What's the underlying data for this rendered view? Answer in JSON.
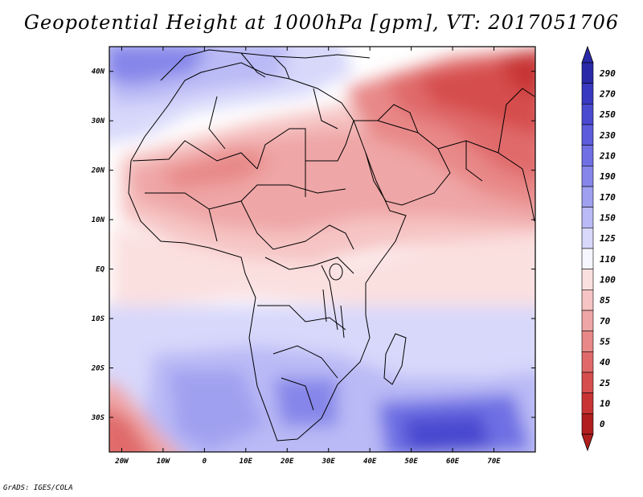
{
  "title": "Geopotential Height at 1000hPa [gpm], VT: 2017051706",
  "credit": "GrADS: IGES/COLA",
  "map": {
    "region": "Africa, Arabia and western Indian Ocean",
    "field": "geopotential height at 1000 hPa",
    "units": "gpm",
    "valid_time": "2017051706",
    "lon_range": [
      -23,
      80
    ],
    "lat_range": [
      -37,
      45
    ],
    "lat_ticks": [
      {
        "value": 40,
        "label": "40N"
      },
      {
        "value": 30,
        "label": "30N"
      },
      {
        "value": 20,
        "label": "20N"
      },
      {
        "value": 10,
        "label": "10N"
      },
      {
        "value": 0,
        "label": "EQ"
      },
      {
        "value": -10,
        "label": "10S"
      },
      {
        "value": -20,
        "label": "20S"
      },
      {
        "value": -30,
        "label": "30S"
      }
    ],
    "lon_ticks": [
      {
        "value": -20,
        "label": "20W"
      },
      {
        "value": -10,
        "label": "10W"
      },
      {
        "value": 0,
        "label": "0"
      },
      {
        "value": 10,
        "label": "10E"
      },
      {
        "value": 20,
        "label": "20E"
      },
      {
        "value": 30,
        "label": "30E"
      },
      {
        "value": 40,
        "label": "40E"
      },
      {
        "value": 50,
        "label": "50E"
      },
      {
        "value": 60,
        "label": "60E"
      },
      {
        "value": 70,
        "label": "70E"
      }
    ]
  },
  "colorbar": {
    "levels": [
      "290",
      "270",
      "250",
      "230",
      "210",
      "190",
      "170",
      "150",
      "125",
      "110",
      "100",
      "85",
      "70",
      "55",
      "40",
      "25",
      "10",
      "0"
    ],
    "colors": [
      "#2a2aa8",
      "#3838c0",
      "#4a4ad0",
      "#5c5cdc",
      "#7070e4",
      "#8686ea",
      "#a0a0f0",
      "#babaf6",
      "#d8d8fb",
      "#f6f6ff",
      "#fbe0e0",
      "#f6c4c4",
      "#efa6a6",
      "#e88888",
      "#e06a6a",
      "#d64e4e",
      "#c83434",
      "#b01e1e"
    ]
  },
  "palette": {
    "ocean_high": "#babaf6",
    "sahara_low": "#efa6a6",
    "arabia_low": "#d64e4e"
  }
}
